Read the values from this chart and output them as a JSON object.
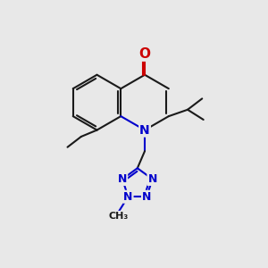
{
  "bg_color": "#e8e8e8",
  "line_color": "#1a1a1a",
  "N_color": "#0000cc",
  "O_color": "#cc0000",
  "lw": 1.5,
  "fig_size": [
    3.0,
    3.0
  ],
  "dpi": 100,
  "xlim": [
    0,
    10
  ],
  "ylim": [
    0,
    10
  ]
}
